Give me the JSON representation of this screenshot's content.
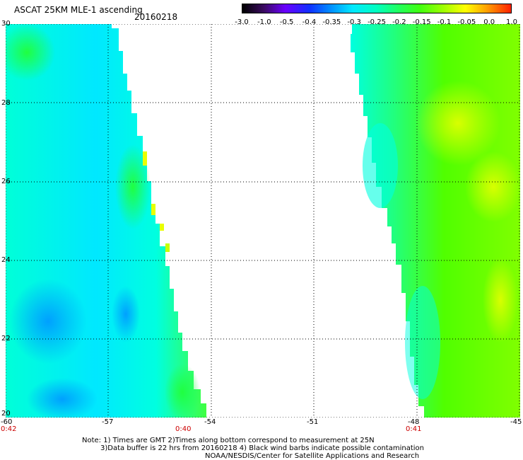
{
  "header": {
    "title": "ASCAT 25KM MLE-1 ascending",
    "date": "20160218"
  },
  "colorbar": {
    "ticks": [
      "-3.0",
      "-1.0",
      "-0.5",
      "-0.4",
      "-0.35",
      "-0.3",
      "-0.25",
      "-0.2",
      "-0.15",
      "-0.1",
      "-0.05",
      "0.0",
      "1.0"
    ],
    "colors": [
      "#000000",
      "#5a1a8a",
      "#6a00ff",
      "#1040ff",
      "#0090ff",
      "#00e0ff",
      "#00ffd0",
      "#20ff60",
      "#60ff00",
      "#c0ff00",
      "#ffff00",
      "#ff9000",
      "#ff2000"
    ]
  },
  "map": {
    "lat_labels": [
      "30",
      "28",
      "26",
      "24",
      "22",
      "20"
    ],
    "lon_labels": [
      "-60",
      "-57",
      "-54",
      "-51",
      "-48",
      "-45"
    ],
    "time_labels": [
      "0:42",
      "0:40",
      "0:41"
    ],
    "colors": {
      "cyan": "#00ffe0",
      "aqua": "#00e8ff",
      "blue": "#00a8ff",
      "green": "#30ff50",
      "lime": "#80ff00",
      "yellow": "#e8ff00",
      "swath_bg": "#ffffff"
    }
  },
  "notes": {
    "line1": "Note: 1) Times are GMT 2)Times along bottom correspond to measurement at 25N",
    "line2": "3)Data buffer is 22 hrs from 20160218 4) Black wind barbs indicate possible contamination",
    "line3": "NOAA/NESDIS/Center for Satellite Applications and Research"
  }
}
